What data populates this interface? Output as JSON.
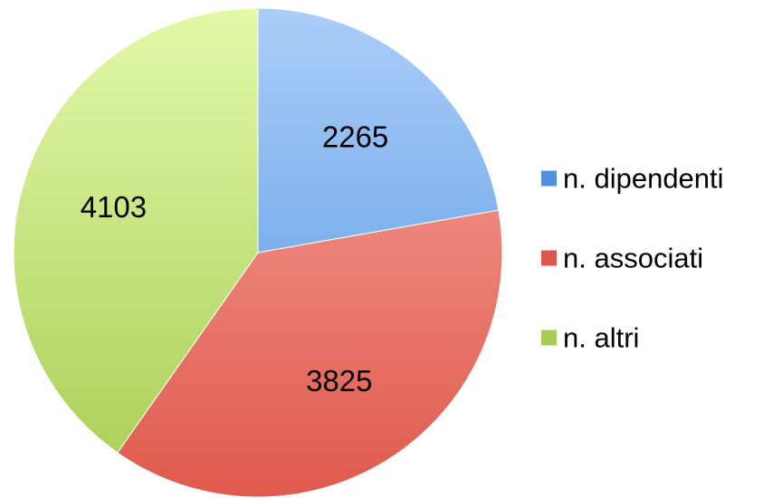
{
  "chart_data": {
    "type": "pie",
    "title": "",
    "start_angle_deg": 0,
    "direction": "clockwise",
    "legend_position": "right",
    "show_value_labels": true,
    "slices": [
      {
        "label": "n. dipendenti",
        "value": 2265,
        "value_label": "2265",
        "color_light": "#aacdf8",
        "color_dark": "#4f93df",
        "swatch": "#4f8fdc"
      },
      {
        "label": "n. associati",
        "value": 3825,
        "value_label": "3825",
        "color_light": "#f8a6a0",
        "color_dark": "#df5a4c",
        "swatch": "#dc574a"
      },
      {
        "label": "n. altri",
        "value": 4103,
        "value_label": "4103",
        "color_light": "#e3f8a8",
        "color_dark": "#a8cd55",
        "swatch": "#a5cd55"
      }
    ]
  }
}
